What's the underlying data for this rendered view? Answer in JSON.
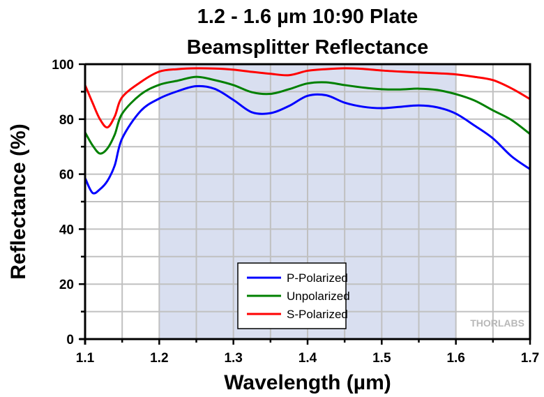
{
  "chart_data": {
    "type": "line",
    "title": [
      "1.2 - 1.6 µm 10:90 Plate",
      "Beamsplitter Reflectance"
    ],
    "xlabel": "Wavelength (µm)",
    "ylabel": "Reflectance (%)",
    "xlim": [
      1.1,
      1.7
    ],
    "ylim": [
      0,
      100
    ],
    "xticks": [
      "1.1",
      "1.2",
      "1.3",
      "1.4",
      "1.5",
      "1.6",
      "1.7"
    ],
    "xtick_values": [
      1.1,
      1.2,
      1.3,
      1.4,
      1.5,
      1.6,
      1.7
    ],
    "xminor_step": 0.05,
    "yticks": [
      "0",
      "20",
      "40",
      "60",
      "80",
      "100"
    ],
    "ytick_values": [
      0,
      20,
      40,
      60,
      80,
      100
    ],
    "yminor_step": 10,
    "grid": true,
    "shaded_region": {
      "x_range": [
        1.2,
        1.6
      ],
      "color": "#d9dff0",
      "meaning": "specified wavelength range"
    },
    "legend_position": "bottom-center",
    "watermark": "THORLABS",
    "x": [
      1.1,
      1.11,
      1.12,
      1.13,
      1.14,
      1.15,
      1.175,
      1.2,
      1.225,
      1.25,
      1.275,
      1.3,
      1.325,
      1.35,
      1.375,
      1.4,
      1.425,
      1.45,
      1.475,
      1.5,
      1.525,
      1.55,
      1.575,
      1.6,
      1.625,
      1.65,
      1.675,
      1.7
    ],
    "series": [
      {
        "name": "P-Polarized",
        "color": "#0000ff",
        "values": [
          58.6,
          53.2,
          54.5,
          57.5,
          63.2,
          73.0,
          83.0,
          87.5,
          90.2,
          92.0,
          91.0,
          87.0,
          82.5,
          82.2,
          84.8,
          88.5,
          88.7,
          86.0,
          84.5,
          84.0,
          84.5,
          85.0,
          84.3,
          82.0,
          77.7,
          73.0,
          66.5,
          61.8
        ]
      },
      {
        "name": "Unpolarized",
        "color": "#008000",
        "values": [
          75.2,
          70.5,
          67.5,
          69.3,
          74.4,
          82.0,
          89.0,
          92.5,
          94.0,
          95.4,
          94.2,
          92.4,
          89.8,
          89.2,
          90.9,
          93.0,
          93.4,
          92.4,
          91.5,
          90.9,
          90.8,
          91.1,
          90.6,
          89.1,
          86.8,
          83.2,
          79.7,
          74.6
        ]
      },
      {
        "name": "S-Polarized",
        "color": "#ff0000",
        "values": [
          92.4,
          86.0,
          80.0,
          77.0,
          81.0,
          88.0,
          93.5,
          97.3,
          98.2,
          98.5,
          98.4,
          98.0,
          97.2,
          96.5,
          96.0,
          97.6,
          98.2,
          98.5,
          98.3,
          97.7,
          97.3,
          97.0,
          96.7,
          96.3,
          95.4,
          94.2,
          91.2,
          87.3
        ]
      }
    ]
  }
}
